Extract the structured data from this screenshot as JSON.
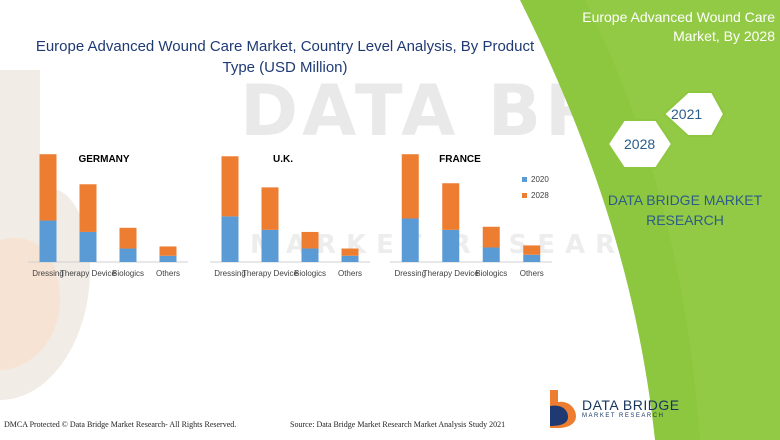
{
  "header": {
    "title_line1": "Europe Advanced Wound Care Market, Country Level Analysis, By Product",
    "title_line2": "Type (USD Million)"
  },
  "side_panel": {
    "title_line1": "Europe Advanced Wound Care",
    "title_line2": "Market, By 2028",
    "hex_year_a": "2021",
    "hex_year_b": "2028",
    "research_line1": "DATA BRIDGE MARKET",
    "research_line2": "RESEARCH"
  },
  "footer": {
    "dmca": "DMCA Protected © Data Bridge Market Research- All Rights Reserved.",
    "source": "Source: Data Bridge Market Research Market Analysis Study 2021"
  },
  "brand": {
    "name": "DATA BRIDGE",
    "sub": "MARKET RESEARCH"
  },
  "watermark": {
    "line1": "DATA BRIDGE",
    "line2": "MARKET RESEARCH"
  },
  "colors": {
    "series_2020": "#5b9bd5",
    "series_2028": "#ed7d31",
    "green_panel": "#8dc63f",
    "title_blue": "#1f3a73"
  },
  "chart_data": [
    {
      "type": "bar",
      "stacked": true,
      "title": "GERMANY",
      "categories": [
        "Dressing",
        "Therapy Device",
        "Biologics",
        "Others"
      ],
      "series": [
        {
          "name": "2020",
          "values": [
            40,
            29,
            13,
            6
          ]
        },
        {
          "name": "2028",
          "values": [
            64,
            46,
            20,
            9
          ]
        }
      ],
      "ylim": [
        0,
        110
      ],
      "grid": false
    },
    {
      "type": "bar",
      "stacked": true,
      "title": "U.K.",
      "categories": [
        "Dressing",
        "Therapy Device",
        "Biologics",
        "Others"
      ],
      "series": [
        {
          "name": "2020",
          "values": [
            44,
            31,
            13,
            6
          ]
        },
        {
          "name": "2028",
          "values": [
            58,
            41,
            16,
            7
          ]
        }
      ],
      "ylim": [
        0,
        110
      ],
      "grid": false
    },
    {
      "type": "bar",
      "stacked": true,
      "title": "FRANCE",
      "categories": [
        "Dressing",
        "Therapy Device",
        "Biologics",
        "Others"
      ],
      "series": [
        {
          "name": "2020",
          "values": [
            42,
            31,
            14,
            7
          ]
        },
        {
          "name": "2028",
          "values": [
            62,
            45,
            20,
            9
          ]
        }
      ],
      "ylim": [
        0,
        110
      ],
      "grid": false
    }
  ],
  "legend": [
    {
      "label": "2020"
    },
    {
      "label": "2028"
    }
  ]
}
